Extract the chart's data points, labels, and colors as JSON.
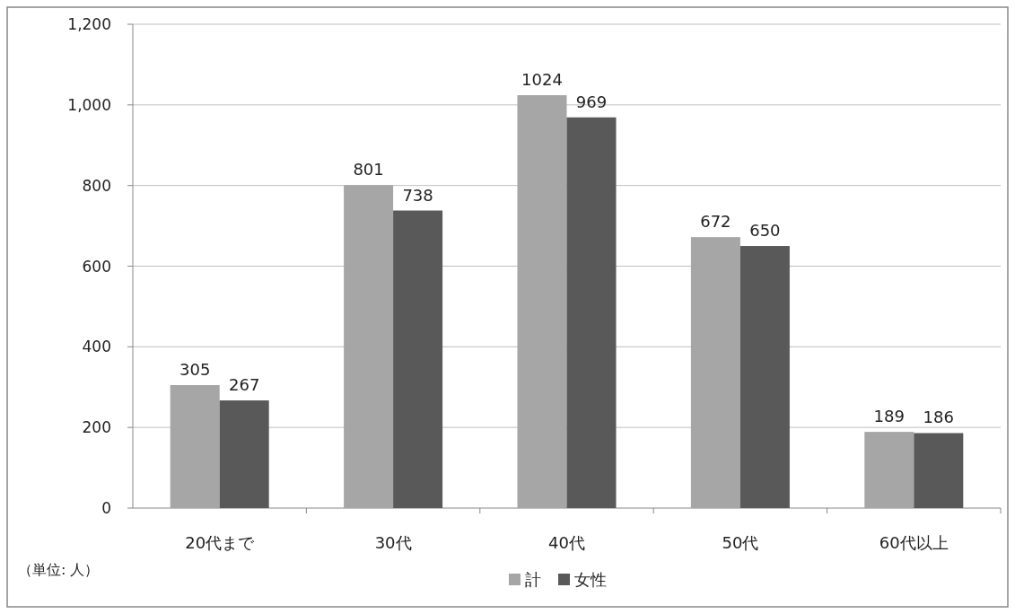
{
  "chart_data": {
    "type": "bar",
    "categories": [
      "20代まで",
      "30代",
      "40代",
      "50代",
      "60代以上"
    ],
    "series": [
      {
        "name": "計",
        "color": "#a6a6a6",
        "values": [
          305,
          801,
          1024,
          672,
          189
        ]
      },
      {
        "name": "女性",
        "color": "#595959",
        "values": [
          267,
          738,
          969,
          650,
          186
        ]
      }
    ],
    "ylim": [
      0,
      1200
    ],
    "yticks": [
      0,
      200,
      400,
      600,
      800,
      {
        "value": 1000,
        "label": "1,000"
      },
      {
        "value": 1200,
        "label": "1,200"
      }
    ],
    "grid": "y",
    "legend": "bottom",
    "data_labels": true,
    "annotations": [
      "（単位: 人）"
    ]
  }
}
